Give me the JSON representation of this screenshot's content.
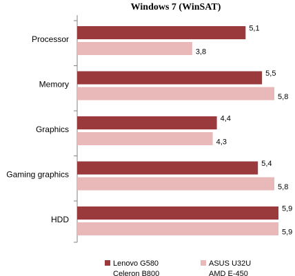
{
  "chart_data": {
    "type": "bar",
    "orientation": "horizontal",
    "title": "Windows 7 (WinSAT)",
    "categories": [
      "Processor",
      "Memory",
      "Graphics",
      "Gaming graphics",
      "HDD"
    ],
    "series": [
      {
        "name": "Lenovo G580",
        "subname": "Celeron B800",
        "color": "#9b3a3c",
        "values": [
          5.1,
          5.5,
          4.4,
          5.4,
          5.9
        ],
        "labels": [
          "5,1",
          "5,5",
          "4,4",
          "5,4",
          "5,9"
        ]
      },
      {
        "name": "ASUS U32U",
        "subname": "AMD E-450",
        "color": "#e9b8b8",
        "values": [
          3.8,
          5.8,
          4.3,
          5.8,
          5.9
        ],
        "labels": [
          "3,8",
          "5,8",
          "4,3",
          "5,8",
          "5,9"
        ]
      }
    ],
    "xlim": [
      1,
      5.9
    ],
    "grid": false,
    "legend_position": "bottom"
  }
}
